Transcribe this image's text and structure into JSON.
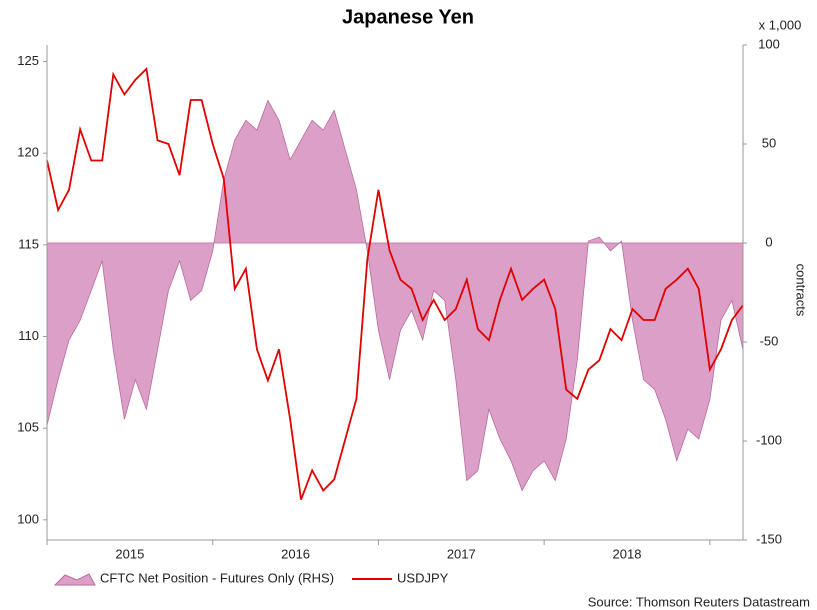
{
  "chart_data": {
    "type": "line",
    "title": "Japanese Yen",
    "y2_unit": "x 1,000",
    "y2_label": "contracts",
    "source": "Source: Thomson Reuters Datastream",
    "x": [
      2015,
      2015.067,
      2015.133,
      2015.2,
      2015.267,
      2015.333,
      2015.4,
      2015.467,
      2015.533,
      2015.6,
      2015.667,
      2015.733,
      2015.8,
      2015.867,
      2015.933,
      2016,
      2016.067,
      2016.133,
      2016.2,
      2016.267,
      2016.333,
      2016.4,
      2016.467,
      2016.533,
      2016.6,
      2016.667,
      2016.733,
      2016.8,
      2016.867,
      2016.933,
      2017,
      2017.067,
      2017.133,
      2017.2,
      2017.267,
      2017.333,
      2017.4,
      2017.467,
      2017.533,
      2017.6,
      2017.667,
      2017.733,
      2017.8,
      2017.867,
      2017.933,
      2018,
      2018.067,
      2018.133,
      2018.2,
      2018.267,
      2018.333,
      2018.4,
      2018.467,
      2018.533,
      2018.6,
      2018.667,
      2018.733,
      2018.8,
      2018.867,
      2018.933,
      2019,
      2019.067,
      2019.133,
      2019.2
    ],
    "series": [
      {
        "name": "CFTC Net Position - Futures Only (RHS)",
        "color": "#dca0c8",
        "axis": "y2",
        "style": "area",
        "values": [
          -92,
          -69,
          -49,
          -39,
          -24,
          -9,
          -54,
          -89,
          -69,
          -84,
          -54,
          -24,
          -9,
          -29,
          -24,
          -4,
          32,
          52,
          62,
          57,
          72,
          62,
          42,
          52,
          62,
          57,
          67,
          47,
          27,
          -4,
          -44,
          -69,
          -44,
          -34,
          -49,
          -24,
          -29,
          -69,
          -120,
          -115,
          -84,
          -99,
          -110,
          -125,
          -115,
          -110,
          -120,
          -99,
          -59,
          1,
          3,
          -4,
          1,
          -39,
          -69,
          -74,
          -89,
          -110,
          -94,
          -99,
          -79,
          -39,
          -29,
          -54
        ]
      },
      {
        "name": "USDJPY",
        "color": "#e00000",
        "style": "line",
        "values": [
          119.6,
          116.9,
          118,
          121.3,
          119.6,
          119.6,
          124.3,
          123.2,
          124,
          124.6,
          120.7,
          120.5,
          118.8,
          122.9,
          122.9,
          120.5,
          118.6,
          112.6,
          113.7,
          109.3,
          107.6,
          109.3,
          105.5,
          101.1,
          102.7,
          101.6,
          102.2,
          104.4,
          106.6,
          114.2,
          118,
          114.7,
          113.1,
          112.6,
          110.9,
          112,
          110.9,
          111.5,
          113.1,
          110.4,
          109.8,
          112,
          113.7,
          112,
          112.6,
          113.1,
          111.5,
          107.1,
          106.6,
          108.2,
          108.7,
          110.4,
          109.8,
          111.5,
          110.9,
          110.9,
          112.6,
          113.1,
          113.7,
          112.6,
          108.2,
          109.3,
          110.9,
          111.7
        ]
      }
    ],
    "xlim": [
      2015,
      2019.2
    ],
    "xticks": [
      2015,
      2016,
      2017,
      2018,
      2019
    ],
    "ylim": [
      98.9,
      125.9
    ],
    "yticks": [
      100,
      105,
      110,
      115,
      120,
      125
    ],
    "y2lim": [
      -150,
      100
    ],
    "y2ticks": [
      -150,
      -100,
      -50,
      0,
      50,
      100
    ]
  }
}
